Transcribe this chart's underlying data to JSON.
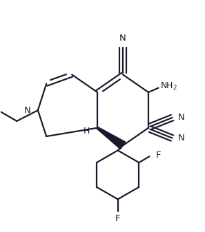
{
  "background": "#ffffff",
  "line_color": "#1a1a2e",
  "line_width": 1.6,
  "figsize": [
    2.97,
    3.37
  ],
  "dpi": 100,
  "xlim": [
    0.0,
    6.0
  ],
  "ylim": [
    0.0,
    6.8
  ]
}
